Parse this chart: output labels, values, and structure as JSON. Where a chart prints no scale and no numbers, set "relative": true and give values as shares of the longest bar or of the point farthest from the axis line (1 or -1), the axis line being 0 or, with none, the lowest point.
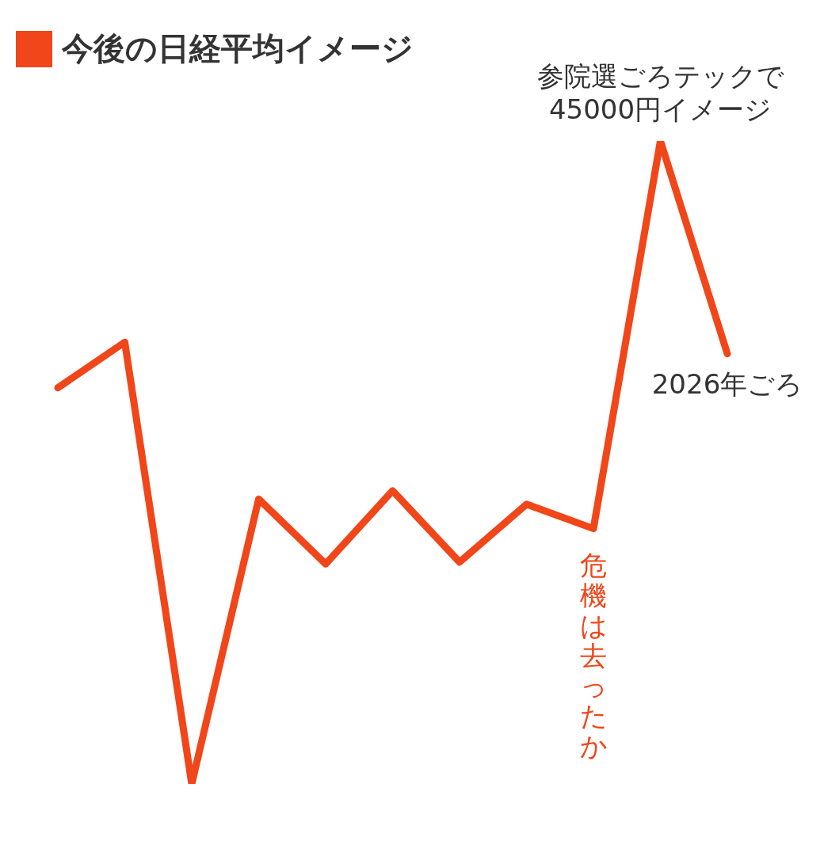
{
  "chart_data": {
    "type": "line",
    "title": "今後の日経平均イメージ",
    "relative": true,
    "marker": "none",
    "line_style": "solid",
    "categories": [
      null,
      null,
      null,
      null,
      null,
      null,
      null,
      null,
      null,
      null,
      null
    ],
    "series": [
      {
        "color": "#f0461a",
        "values": [
          0.616,
          0.687,
          0,
          0.443,
          0.342,
          0.456,
          0.345,
          0.435,
          0.397,
          1,
          0.669
        ]
      }
    ],
    "annotations": [
      {
        "text": "参院選ごろテックで\n45000円イメージ",
        "y": 1
      },
      {
        "text": "危機は去ったか",
        "y": 0.397
      },
      {
        "text": "2026年ごろ",
        "y": 0.669
      }
    ]
  }
}
